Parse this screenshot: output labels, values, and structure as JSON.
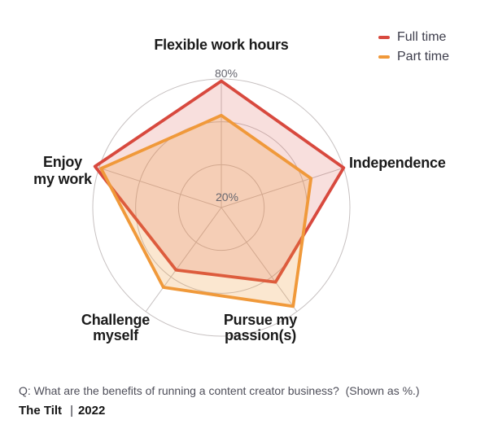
{
  "chart_data": {
    "type": "radar",
    "categories": [
      "Flexible work hours",
      "Independence",
      "Pursue my passion(s)",
      "Challenge myself",
      "Enjoy my work"
    ],
    "series": [
      {
        "name": "Full time",
        "color": "#D8493E",
        "fill_opacity": 0.175,
        "values": [
          79,
          80,
          63,
          56,
          82
        ]
      },
      {
        "name": "Part time",
        "color": "#F0993A",
        "fill_opacity": 0.24,
        "values": [
          63,
          64,
          77,
          66,
          79
        ]
      }
    ],
    "scale": {
      "min": 20,
      "max": 80,
      "unit": "%",
      "rings": [
        40,
        60,
        80
      ],
      "outer_ring_label": "80%",
      "center_label": "20%"
    },
    "grid": {
      "shape": "circle",
      "color": "#C7C1C1",
      "spokes": 5
    },
    "legend_position": "top-right",
    "start_axis": "top",
    "direction": "clockwise"
  },
  "axis_display": [
    {
      "lines": [
        "Flexible work hours"
      ]
    },
    {
      "lines": [
        "Independence"
      ]
    },
    {
      "lines": [
        "Pursue my",
        "passion(s)"
      ]
    },
    {
      "lines": [
        "Challenge",
        "myself"
      ]
    },
    {
      "lines": [
        "Enjoy",
        "my work"
      ]
    }
  ],
  "caption": {
    "text": "Q: What are the benefits of running a content creator business?  (Shown as %.)"
  },
  "footer": {
    "source": "The Tilt",
    "divider": "|",
    "year": "2022"
  }
}
